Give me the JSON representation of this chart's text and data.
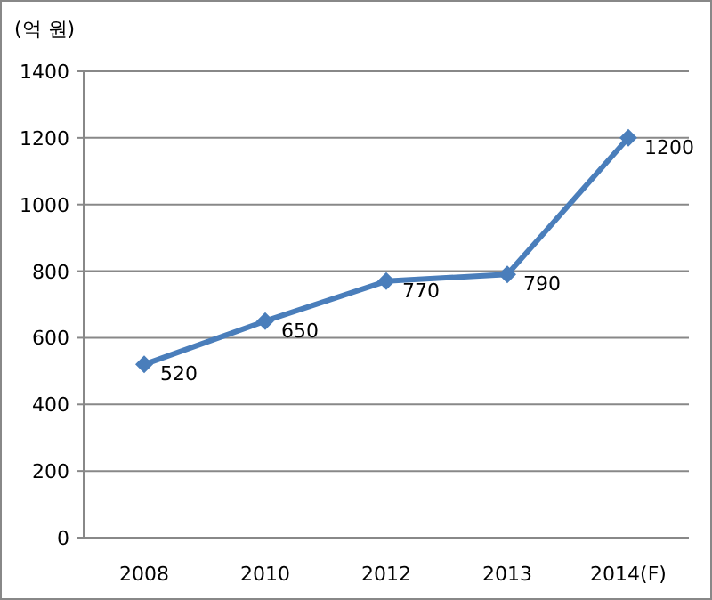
{
  "chart_data": {
    "type": "line",
    "ylabel": "(억 원)",
    "categories": [
      "2008",
      "2010",
      "2012",
      "2013",
      "2014(F)"
    ],
    "series": [
      {
        "color": "#4a7ebb",
        "values": [
          520,
          650,
          770,
          790,
          1200
        ]
      }
    ],
    "ylim": [
      0,
      1400
    ],
    "yticks": [
      0,
      200,
      400,
      600,
      800,
      1000,
      1200,
      1400
    ],
    "grid": "y",
    "marker": "diamond",
    "line_style": "solid",
    "data_labels": true
  }
}
